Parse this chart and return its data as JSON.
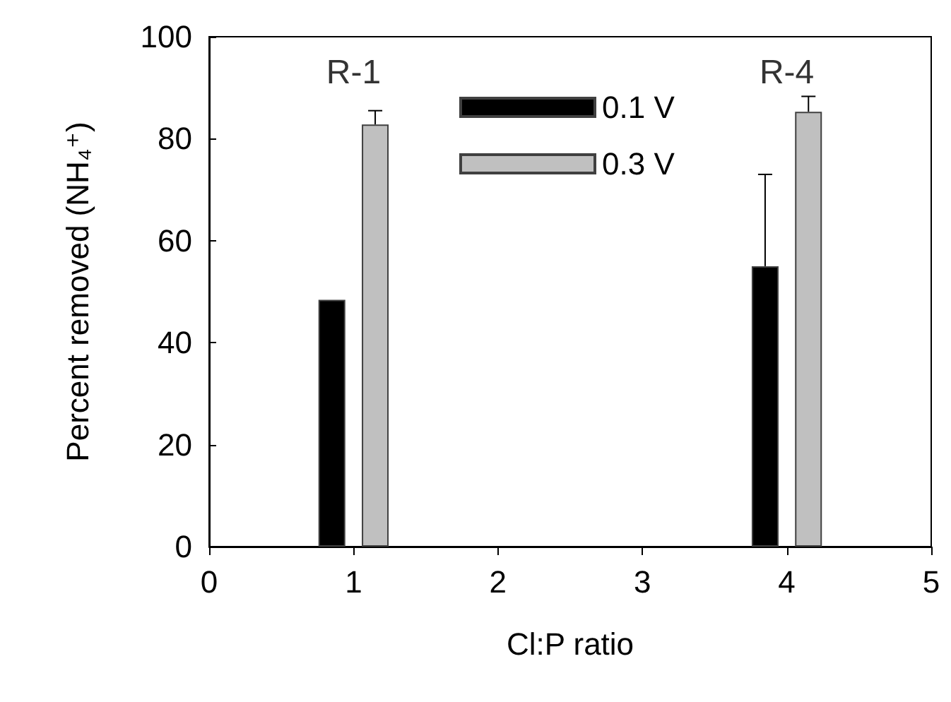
{
  "chart_data": {
    "type": "bar",
    "xlabel": "Cl:P ratio",
    "ylabel": "Percent removed (NH₄⁺)",
    "series": [
      {
        "name": "0.1 V",
        "color": "#000000",
        "x": [
          0.85,
          3.85
        ],
        "values": [
          48.4,
          55.0
        ],
        "errors": [
          null,
          [
            55.0,
            73.0
          ]
        ]
      },
      {
        "name": "0.3 V",
        "color": "#c0c0c0",
        "x": [
          1.15,
          4.15
        ],
        "values": [
          82.8,
          85.3
        ],
        "errors": [
          [
            82.8,
            85.5
          ],
          [
            85.3,
            88.3
          ]
        ]
      }
    ],
    "annotations": [
      "R-1",
      "R-4"
    ],
    "xlim": [
      0,
      5
    ],
    "xticks": [
      0,
      1,
      2,
      3,
      4,
      5
    ],
    "ylim": [
      0,
      100
    ],
    "yticks": [
      0,
      20,
      40,
      60,
      80,
      100
    ],
    "grid": false,
    "legend": "top"
  }
}
